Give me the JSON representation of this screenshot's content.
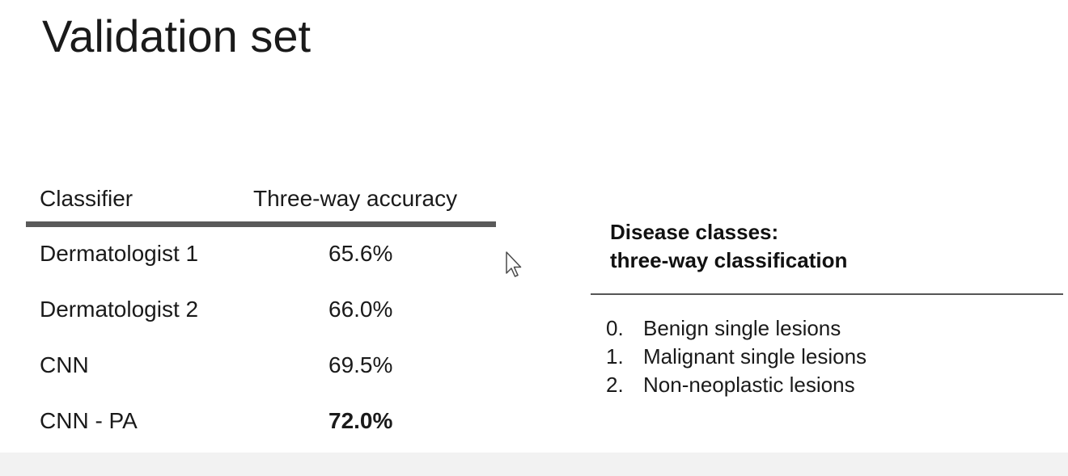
{
  "slide": {
    "title": "Validation set"
  },
  "table": {
    "headers": {
      "classifier": "Classifier",
      "accuracy": "Three-way accuracy"
    },
    "rows": [
      {
        "classifier": "Dermatologist 1",
        "accuracy": "65.6%",
        "bold": false
      },
      {
        "classifier": "Dermatologist 2",
        "accuracy": "66.0%",
        "bold": false
      },
      {
        "classifier": "CNN",
        "accuracy": "69.5%",
        "bold": false
      },
      {
        "classifier": "CNN - PA",
        "accuracy": "72.0%",
        "bold": true
      }
    ]
  },
  "disease_classes": {
    "title_line1": "Disease classes:",
    "title_line2": "three-way classification",
    "items": [
      {
        "number": "0.",
        "label": "Benign single lesions"
      },
      {
        "number": "1.",
        "label": "Malignant single lesions"
      },
      {
        "number": "2.",
        "label": "Non-neoplastic lesions"
      }
    ]
  },
  "colors": {
    "text": "#1a1a1a",
    "header_rule": "#5a5a5a",
    "divider": "#555555",
    "bottom_bar": "#f2f2f2"
  },
  "icons": {
    "cursor": "mouse-pointer-icon"
  }
}
